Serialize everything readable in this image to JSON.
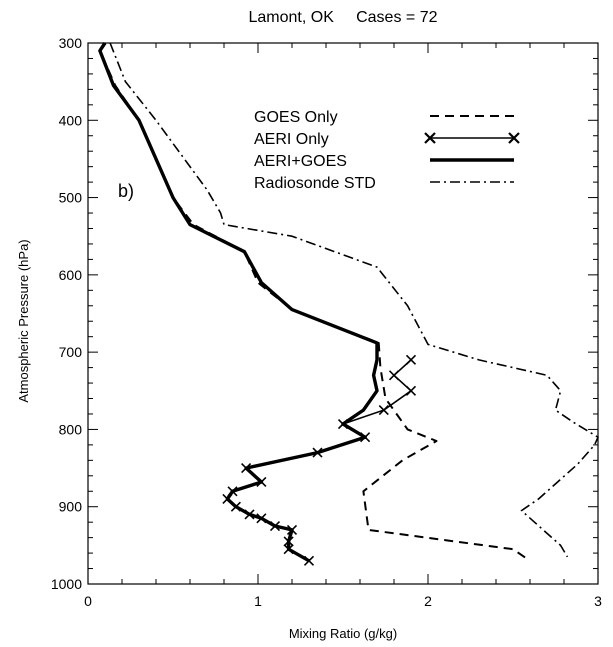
{
  "chart_data": {
    "type": "line",
    "title": "Lamont, OK     Cases = 72",
    "panel_label": "b)",
    "xlabel": "Mixing Ratio (g/kg)",
    "ylabel": "Atmospheric Pressure (hPa)",
    "xlim": [
      0,
      3
    ],
    "ylim": [
      1000,
      300
    ],
    "y_inverted": true,
    "xticks": [
      0,
      1,
      2,
      3
    ],
    "xtick_labels": [
      "0",
      "1",
      "2",
      "3"
    ],
    "yticks": [
      300,
      400,
      500,
      600,
      700,
      800,
      900,
      1000
    ],
    "ytick_labels": [
      "300",
      "400",
      "500",
      "600",
      "700",
      "800",
      "900",
      "1000"
    ],
    "grid": false,
    "legend_position": "top-right",
    "series": [
      {
        "name": "GOES Only",
        "style": "dashed",
        "points": [
          [
            0.1,
            300
          ],
          [
            0.07,
            310
          ],
          [
            0.16,
            355
          ],
          [
            0.3,
            400
          ],
          [
            0.5,
            500
          ],
          [
            0.62,
            535
          ],
          [
            0.92,
            570
          ],
          [
            1.0,
            610
          ],
          [
            1.2,
            645
          ],
          [
            1.71,
            688
          ],
          [
            1.72,
            720
          ],
          [
            1.75,
            760
          ],
          [
            1.88,
            800
          ],
          [
            2.05,
            815
          ],
          [
            1.85,
            840
          ],
          [
            1.62,
            880
          ],
          [
            1.65,
            930
          ],
          [
            2.5,
            955
          ],
          [
            2.6,
            970
          ]
        ]
      },
      {
        "name": "AERI Only",
        "style": "solid-x",
        "points": [
          [
            1.9,
            710
          ],
          [
            1.8,
            730
          ],
          [
            1.9,
            750
          ],
          [
            1.74,
            775
          ],
          [
            1.5,
            793
          ],
          [
            1.63,
            810
          ],
          [
            1.35,
            830
          ],
          [
            0.93,
            850
          ],
          [
            1.02,
            868
          ],
          [
            0.85,
            880
          ],
          [
            0.82,
            890
          ],
          [
            0.87,
            900
          ],
          [
            0.95,
            910
          ],
          [
            1.02,
            915
          ],
          [
            1.1,
            925
          ],
          [
            1.2,
            930
          ],
          [
            1.18,
            945
          ],
          [
            1.18,
            955
          ],
          [
            1.3,
            970
          ]
        ]
      },
      {
        "name": "AERI+GOES",
        "style": "solid-thick",
        "points": [
          [
            0.1,
            300
          ],
          [
            0.07,
            310
          ],
          [
            0.15,
            355
          ],
          [
            0.3,
            400
          ],
          [
            0.5,
            500
          ],
          [
            0.6,
            535
          ],
          [
            0.92,
            570
          ],
          [
            1.02,
            610
          ],
          [
            1.2,
            645
          ],
          [
            1.7,
            688
          ],
          [
            1.7,
            710
          ],
          [
            1.68,
            730
          ],
          [
            1.7,
            750
          ],
          [
            1.62,
            775
          ],
          [
            1.5,
            793
          ],
          [
            1.63,
            810
          ],
          [
            1.35,
            830
          ],
          [
            0.93,
            850
          ],
          [
            1.02,
            868
          ],
          [
            0.85,
            880
          ],
          [
            0.82,
            890
          ],
          [
            0.87,
            900
          ],
          [
            0.95,
            910
          ],
          [
            1.02,
            915
          ],
          [
            1.1,
            925
          ],
          [
            1.2,
            930
          ],
          [
            1.18,
            945
          ],
          [
            1.18,
            955
          ],
          [
            1.3,
            970
          ]
        ]
      },
      {
        "name": "Radiosonde STD",
        "style": "dash-dot",
        "points": [
          [
            0.13,
            300
          ],
          [
            0.22,
            350
          ],
          [
            0.4,
            400
          ],
          [
            0.7,
            490
          ],
          [
            0.78,
            520
          ],
          [
            0.8,
            535
          ],
          [
            1.2,
            550
          ],
          [
            1.7,
            590
          ],
          [
            1.88,
            640
          ],
          [
            2.0,
            690
          ],
          [
            2.3,
            710
          ],
          [
            2.7,
            730
          ],
          [
            2.78,
            750
          ],
          [
            2.75,
            775
          ],
          [
            2.85,
            790
          ],
          [
            3.0,
            810
          ],
          [
            2.98,
            820
          ],
          [
            2.88,
            845
          ],
          [
            2.65,
            890
          ],
          [
            2.55,
            905
          ],
          [
            2.78,
            950
          ],
          [
            2.82,
            965
          ]
        ]
      }
    ]
  }
}
